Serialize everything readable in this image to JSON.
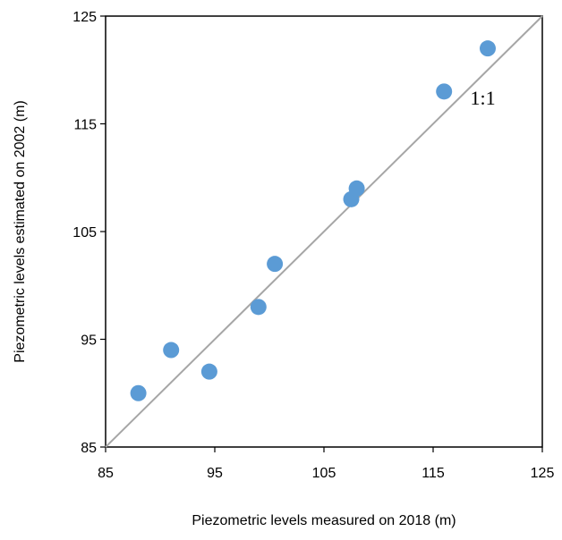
{
  "chart_data": {
    "type": "scatter",
    "title": "",
    "xlabel": "Piezometric levels measured on 2018 (m)",
    "ylabel": "Piezometric levels estimated on 2002 (m)",
    "xlim": [
      85,
      125
    ],
    "ylim": [
      85,
      125
    ],
    "xticks": [
      "85",
      "95",
      "105",
      "115",
      "125"
    ],
    "yticks": [
      "85",
      "95",
      "105",
      "115",
      "125"
    ],
    "grid": false,
    "legend": "none",
    "series": [
      {
        "color": "#5B9BD5",
        "points": [
          {
            "x": 88.0,
            "y": 90.0
          },
          {
            "x": 91.0,
            "y": 94.0
          },
          {
            "x": 94.5,
            "y": 92.0
          },
          {
            "x": 99.0,
            "y": 98.0
          },
          {
            "x": 100.5,
            "y": 102.0
          },
          {
            "x": 107.5,
            "y": 108.0
          },
          {
            "x": 108.0,
            "y": 109.0
          },
          {
            "x": 116.0,
            "y": 118.0
          },
          {
            "x": 120.0,
            "y": 122.0
          }
        ]
      }
    ],
    "reference_line": {
      "label": "1:1",
      "color": "#A6A6A6",
      "from": [
        85,
        85
      ],
      "to": [
        125,
        125
      ]
    },
    "marker_color": "#5B9BD5"
  }
}
